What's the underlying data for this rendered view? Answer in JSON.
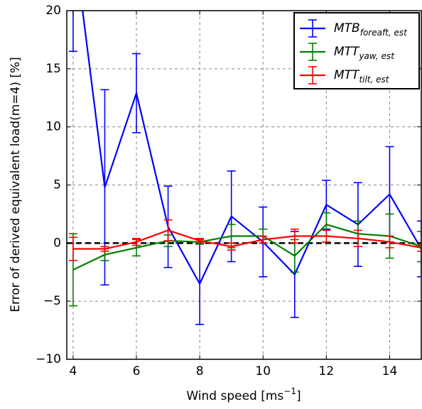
{
  "chart_data": {
    "type": "errorbar_line",
    "ylabel": "Error of derived equivalent load(m=4) [%]",
    "xlabel": {
      "text": "Wind speed [ms",
      "sup": "−1",
      "end": "]"
    },
    "x": [
      4,
      5,
      6,
      7,
      8,
      9,
      10,
      11,
      12,
      13,
      14,
      15
    ],
    "series": [
      {
        "name": "MTB",
        "sub": "foreaft, est",
        "color": "#0000ff",
        "values": [
          26.5,
          4.8,
          12.9,
          1.4,
          -3.5,
          2.3,
          0.1,
          -2.7,
          3.3,
          1.6,
          4.2,
          -0.5
        ],
        "errors": [
          10,
          8.4,
          3.4,
          3.5,
          3.5,
          3.9,
          3.0,
          3.7,
          2.1,
          3.6,
          4.1,
          2.4
        ]
      },
      {
        "name": "MTT",
        "sub": "yaw, est",
        "color": "#008000",
        "values": [
          -2.3,
          -1.0,
          -0.4,
          0.2,
          0.1,
          0.6,
          0.6,
          -1.1,
          1.6,
          0.8,
          0.6,
          -0.3
        ],
        "errors": [
          3.1,
          0.5,
          0.7,
          0.5,
          0.2,
          1.0,
          0.6,
          1.4,
          1.0,
          1.1,
          1.9,
          1.3
        ]
      },
      {
        "name": "MTT",
        "sub": "tilt, est",
        "color": "#ff0000",
        "values": [
          -0.5,
          -0.5,
          0.1,
          1.1,
          0.2,
          -0.3,
          0.3,
          0.6,
          0.6,
          0.4,
          0.1,
          -0.4
        ],
        "errors": [
          1.0,
          0.2,
          0.3,
          0.9,
          0.2,
          0.3,
          0.3,
          0.6,
          0.5,
          0.7,
          0.5,
          0.3
        ]
      }
    ],
    "hline": 0,
    "xlim": [
      3.8,
      15
    ],
    "xticks": [
      4,
      6,
      8,
      10,
      12,
      14
    ],
    "ylim": [
      -10,
      20
    ],
    "yticks": [
      {
        "value": -10,
        "label": "−10"
      },
      {
        "value": -5,
        "label": "−5"
      },
      0,
      5,
      10,
      15,
      20
    ],
    "grid": true,
    "legend": "upper right"
  }
}
